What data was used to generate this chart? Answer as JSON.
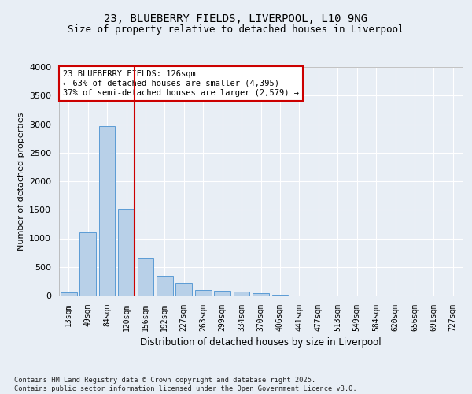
{
  "title1": "23, BLUEBERRY FIELDS, LIVERPOOL, L10 9NG",
  "title2": "Size of property relative to detached houses in Liverpool",
  "xlabel": "Distribution of detached houses by size in Liverpool",
  "ylabel": "Number of detached properties",
  "categories": [
    "13sqm",
    "49sqm",
    "84sqm",
    "120sqm",
    "156sqm",
    "192sqm",
    "227sqm",
    "263sqm",
    "299sqm",
    "334sqm",
    "370sqm",
    "406sqm",
    "441sqm",
    "477sqm",
    "513sqm",
    "549sqm",
    "584sqm",
    "620sqm",
    "656sqm",
    "691sqm",
    "727sqm"
  ],
  "values": [
    55,
    1110,
    2960,
    1520,
    650,
    340,
    215,
    90,
    85,
    70,
    35,
    20,
    5,
    0,
    0,
    0,
    0,
    0,
    0,
    0,
    0
  ],
  "bar_color": "#b8d0e8",
  "bar_edge_color": "#5b9bd5",
  "vline_color": "#cc0000",
  "vline_pos": 3.5,
  "annotation_text": "23 BLUEBERRY FIELDS: 126sqm\n← 63% of detached houses are smaller (4,395)\n37% of semi-detached houses are larger (2,579) →",
  "annotation_box_color": "#cc0000",
  "ylim": [
    0,
    4000
  ],
  "yticks": [
    0,
    500,
    1000,
    1500,
    2000,
    2500,
    3000,
    3500,
    4000
  ],
  "footer": "Contains HM Land Registry data © Crown copyright and database right 2025.\nContains public sector information licensed under the Open Government Licence v3.0.",
  "bg_color": "#e8eef5",
  "plot_bg_color": "#e8eef5",
  "grid_color": "#ffffff",
  "title1_fontsize": 10,
  "title2_fontsize": 9
}
